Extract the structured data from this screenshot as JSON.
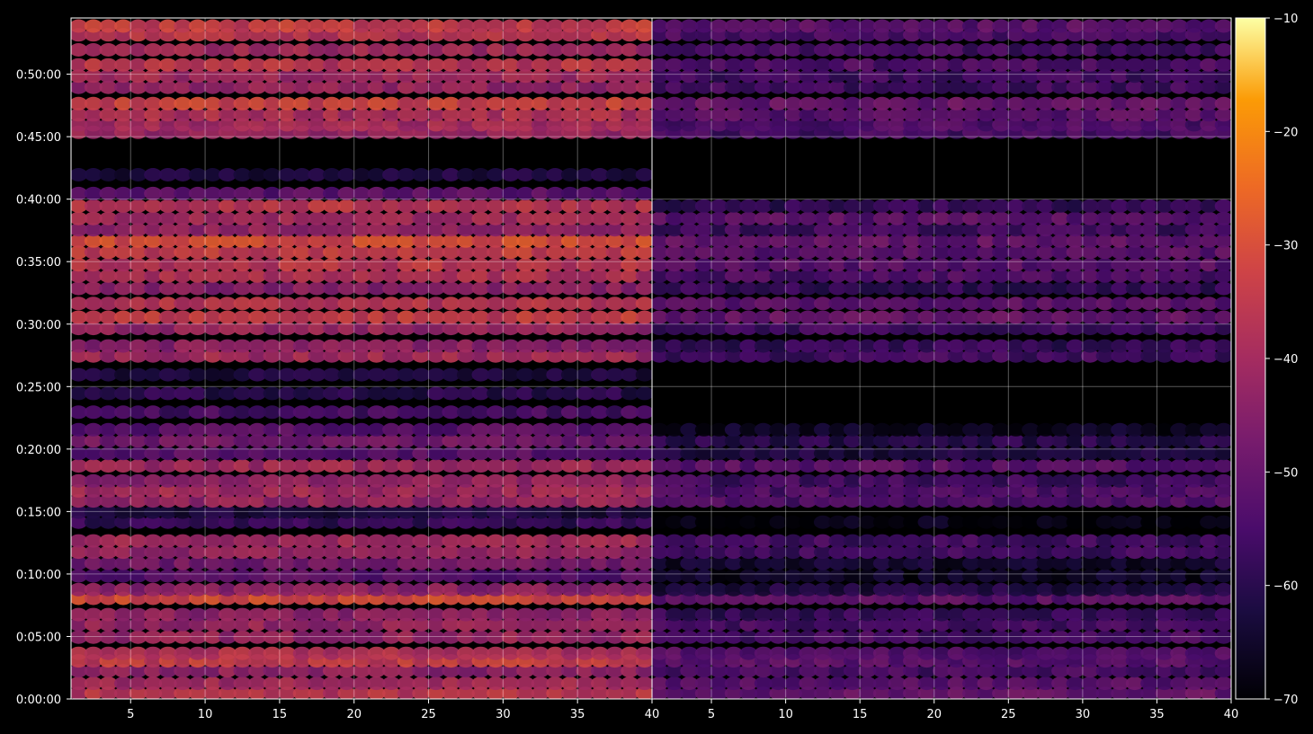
{
  "chart_data": {
    "type": "heatmap",
    "colormap": "inferno",
    "background_color": "#000000",
    "grid": true,
    "grid_color": "#ffffff",
    "color_scale": {
      "min": -70,
      "max": -10,
      "ticks": [
        -70,
        -60,
        -50,
        -40,
        -30,
        -20,
        -10
      ],
      "tick_labels": [
        "−70",
        "−60",
        "−50",
        "−40",
        "−30",
        "−20",
        "−10"
      ]
    },
    "y_axis": {
      "range_minutes": [
        0,
        54.5
      ],
      "ticks_minutes": [
        0,
        5,
        10,
        15,
        20,
        25,
        30,
        35,
        40,
        45,
        50
      ],
      "tick_labels": [
        "0:00:00",
        "0:05:00",
        "0:10:00",
        "0:15:00",
        "0:20:00",
        "0:25:00",
        "0:30:00",
        "0:35:00",
        "0:40:00",
        "0:45:00",
        "0:50:00"
      ]
    },
    "panels": [
      {
        "x_range": [
          1,
          40
        ],
        "x_ticks": [
          5,
          10,
          15,
          20,
          25,
          30,
          35,
          40
        ],
        "x_tick_labels": [
          "5",
          "10",
          "15",
          "20",
          "25",
          "30",
          "35",
          "40"
        ],
        "level_offset": 0,
        "bands": [
          {
            "t": 0.0,
            "v": -36
          },
          {
            "t": 0.8,
            "v": -40
          },
          {
            "t": 1.8,
            "v": -43
          },
          {
            "t": 2.6,
            "v": -34
          },
          {
            "t": 3.2,
            "v": -38
          },
          {
            "t": 4.5,
            "v": -42
          },
          {
            "t": 5.5,
            "v": -42
          },
          {
            "t": 6.3,
            "v": -44
          },
          {
            "t": 7.6,
            "v": -31
          },
          {
            "t": 8.3,
            "v": -44
          },
          {
            "t": 9.4,
            "v": -52
          },
          {
            "t": 10.4,
            "v": -48
          },
          {
            "t": 11.3,
            "v": -42
          },
          {
            "t": 12.2,
            "v": -40
          },
          {
            "t": 13.7,
            "v": -58
          },
          {
            "t": 14.5,
            "v": -62
          },
          {
            "t": 15.4,
            "v": -42
          },
          {
            "t": 16.2,
            "v": -40
          },
          {
            "t": 17.0,
            "v": -43
          },
          {
            "t": 18.2,
            "v": -40
          },
          {
            "t": 19.2,
            "v": -52
          },
          {
            "t": 20.2,
            "v": -48
          },
          {
            "t": 21.1,
            "v": -52
          },
          {
            "t": 22.5,
            "v": -55
          },
          {
            "t": 24.0,
            "v": -60
          },
          {
            "t": 25.5,
            "v": -62
          },
          {
            "t": 27.0,
            "v": -40
          },
          {
            "t": 27.8,
            "v": -44
          },
          {
            "t": 29.2,
            "v": -42
          },
          {
            "t": 30.1,
            "v": -34
          },
          {
            "t": 31.2,
            "v": -37
          },
          {
            "t": 32.4,
            "v": -44
          },
          {
            "t": 33.4,
            "v": -38
          },
          {
            "t": 34.3,
            "v": -36
          },
          {
            "t": 35.3,
            "v": -34
          },
          {
            "t": 36.2,
            "v": -31
          },
          {
            "t": 37.1,
            "v": -42
          },
          {
            "t": 38.0,
            "v": -40
          },
          {
            "t": 39.0,
            "v": -36
          },
          {
            "t": 40.0,
            "v": -52
          },
          {
            "t": 41.5,
            "v": -62
          },
          {
            "t": 44.9,
            "v": -42
          },
          {
            "t": 45.5,
            "v": -40
          },
          {
            "t": 46.3,
            "v": -38
          },
          {
            "t": 47.2,
            "v": -33
          },
          {
            "t": 48.5,
            "v": -42
          },
          {
            "t": 49.4,
            "v": -40
          },
          {
            "t": 50.3,
            "v": -36
          },
          {
            "t": 51.5,
            "v": -40
          },
          {
            "t": 52.7,
            "v": -36
          },
          {
            "t": 53.4,
            "v": -34
          }
        ]
      },
      {
        "x_range": [
          1,
          40
        ],
        "x_ticks": [
          5,
          10,
          15,
          20,
          25,
          30,
          35,
          40
        ],
        "x_tick_labels": [
          "5",
          "10",
          "15",
          "20",
          "25",
          "30",
          "35",
          "40"
        ],
        "level_offset": -12,
        "bands": [
          {
            "t": 0.0,
            "v": -50
          },
          {
            "t": 0.8,
            "v": -52
          },
          {
            "t": 1.8,
            "v": -55
          },
          {
            "t": 2.6,
            "v": -52
          },
          {
            "t": 3.2,
            "v": -53
          },
          {
            "t": 4.5,
            "v": -55
          },
          {
            "t": 5.5,
            "v": -55
          },
          {
            "t": 6.3,
            "v": -58
          },
          {
            "t": 7.6,
            "v": -52
          },
          {
            "t": 8.3,
            "v": -62
          },
          {
            "t": 9.4,
            "v": -66
          },
          {
            "t": 10.4,
            "v": -64
          },
          {
            "t": 11.3,
            "v": -56
          },
          {
            "t": 12.2,
            "v": -56
          },
          {
            "t": 13.7,
            "v": -68
          },
          {
            "t": 15.4,
            "v": -54
          },
          {
            "t": 16.2,
            "v": -54
          },
          {
            "t": 17.0,
            "v": -56
          },
          {
            "t": 18.2,
            "v": -52
          },
          {
            "t": 19.2,
            "v": -62
          },
          {
            "t": 20.2,
            "v": -60
          },
          {
            "t": 21.1,
            "v": -66
          },
          {
            "t": 27.0,
            "v": -56
          },
          {
            "t": 27.8,
            "v": -58
          },
          {
            "t": 29.2,
            "v": -56
          },
          {
            "t": 30.1,
            "v": -50
          },
          {
            "t": 31.2,
            "v": -52
          },
          {
            "t": 32.4,
            "v": -58
          },
          {
            "t": 33.4,
            "v": -54
          },
          {
            "t": 34.3,
            "v": -52
          },
          {
            "t": 35.3,
            "v": -52
          },
          {
            "t": 36.2,
            "v": -50
          },
          {
            "t": 37.1,
            "v": -56
          },
          {
            "t": 38.0,
            "v": -52
          },
          {
            "t": 39.0,
            "v": -58
          },
          {
            "t": 44.9,
            "v": -55
          },
          {
            "t": 45.5,
            "v": -54
          },
          {
            "t": 46.3,
            "v": -52
          },
          {
            "t": 47.2,
            "v": -50
          },
          {
            "t": 48.5,
            "v": -56
          },
          {
            "t": 49.4,
            "v": -56
          },
          {
            "t": 50.3,
            "v": -54
          },
          {
            "t": 51.5,
            "v": -56
          },
          {
            "t": 52.7,
            "v": -54
          },
          {
            "t": 53.4,
            "v": -52
          }
        ]
      }
    ]
  }
}
